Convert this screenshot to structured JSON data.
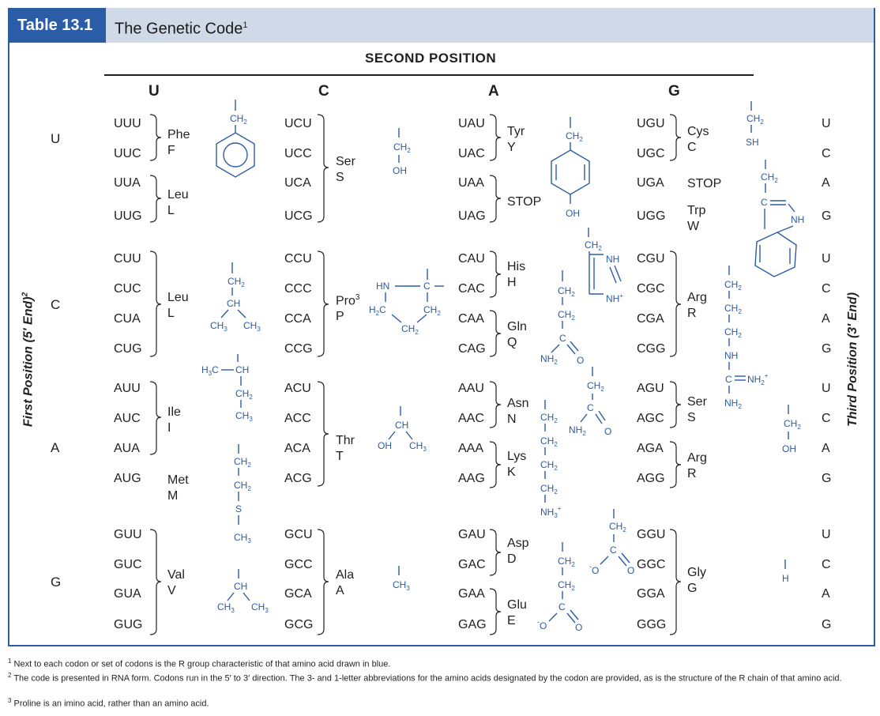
{
  "header": {
    "table_label": "Table 13.1",
    "title": "The Genetic Code",
    "title_note": "1"
  },
  "second_position_label": "SECOND POSITION",
  "second_bases": [
    "U",
    "C",
    "A",
    "G"
  ],
  "first_bases": [
    "U",
    "C",
    "A",
    "G"
  ],
  "third_bases": [
    "U",
    "C",
    "A",
    "G",
    "U",
    "C",
    "A",
    "G",
    "U",
    "C",
    "A",
    "G",
    "U",
    "C",
    "A",
    "G"
  ],
  "axis": {
    "first": "First Position (5′ End)",
    "first_note": "2",
    "third": "Third Position (3′ End)"
  },
  "codons": [
    [
      "UUU",
      "UUC",
      "UUA",
      "UUG",
      "CUU",
      "CUC",
      "CUA",
      "CUG",
      "AUU",
      "AUC",
      "AUA",
      "AUG",
      "GUU",
      "GUC",
      "GUA",
      "GUG"
    ],
    [
      "UCU",
      "UCC",
      "UCA",
      "UCG",
      "CCU",
      "CCC",
      "CCA",
      "CCG",
      "ACU",
      "ACC",
      "ACA",
      "ACG",
      "GCU",
      "GCC",
      "GCA",
      "GCG"
    ],
    [
      "UAU",
      "UAC",
      "UAA",
      "UAG",
      "CAU",
      "CAC",
      "CAA",
      "CAG",
      "AAU",
      "AAC",
      "AAA",
      "AAG",
      "GAU",
      "GAC",
      "GAA",
      "GAG"
    ],
    [
      "UGU",
      "UGC",
      "UGA",
      "UGG",
      "CGU",
      "CGC",
      "CGA",
      "CGG",
      "AGU",
      "AGC",
      "AGA",
      "AGG",
      "GGU",
      "GGC",
      "GGA",
      "GGG"
    ]
  ],
  "amino_acids": [
    {
      "three": "Phe",
      "one": "F"
    },
    {
      "three": "Leu",
      "one": "L"
    },
    {
      "three": "Leu",
      "one": "L"
    },
    {
      "three": "Ile",
      "one": "I"
    },
    {
      "three": "Met",
      "one": "M"
    },
    {
      "three": "Val",
      "one": "V"
    },
    {
      "three": "Ser",
      "one": "S"
    },
    {
      "three": "Pro",
      "note": "3",
      "one": "P"
    },
    {
      "three": "Thr",
      "one": "T"
    },
    {
      "three": "Ala",
      "one": "A"
    },
    {
      "three": "Tyr",
      "one": "Y"
    },
    {
      "stop": "STOP"
    },
    {
      "three": "His",
      "one": "H"
    },
    {
      "three": "Gln",
      "one": "Q"
    },
    {
      "three": "Asn",
      "one": "N"
    },
    {
      "three": "Lys",
      "one": "K"
    },
    {
      "three": "Asp",
      "one": "D"
    },
    {
      "three": "Glu",
      "one": "E"
    },
    {
      "three": "Cys",
      "one": "C"
    },
    {
      "stop": "STOP"
    },
    {
      "three": "Trp",
      "one": "W"
    },
    {
      "three": "Arg",
      "one": "R"
    },
    {
      "three": "Ser",
      "one": "S"
    },
    {
      "three": "Arg",
      "one": "R"
    },
    {
      "three": "Gly",
      "one": "G"
    }
  ],
  "r_group_labels": {
    "ch2": "CH",
    "ch": "CH",
    "ch3": "CH",
    "sub2": "2",
    "sub3": "3",
    "h3c": "H",
    "h3c_tail": "C",
    "h2c": "H",
    "h2c_tail": "C",
    "hn": "HN",
    "c": "C",
    "oh": "OH",
    "sh": "SH",
    "s": "S",
    "h": "H",
    "nh": "NH",
    "nh_plus": "NH",
    "nh2": "NH",
    "nh3": "NH",
    "plus": "+",
    "o": "O",
    "o_minus": "O",
    "minus": "-"
  },
  "footnotes": [
    {
      "mark": "1",
      "text": "Next to each codon or set of codons is the R group characteristic of that amino acid drawn in blue."
    },
    {
      "mark": "2",
      "text": "The code is presented in RNA form. Codons run in the 5′ to 3′ direction. The 3- and 1-letter abbreviations for the amino acids designated by the codon are provided, as is the structure of the R chain of that amino acid."
    },
    {
      "mark": "3",
      "text": "Proline is an imino acid, rather than an amino acid."
    }
  ]
}
